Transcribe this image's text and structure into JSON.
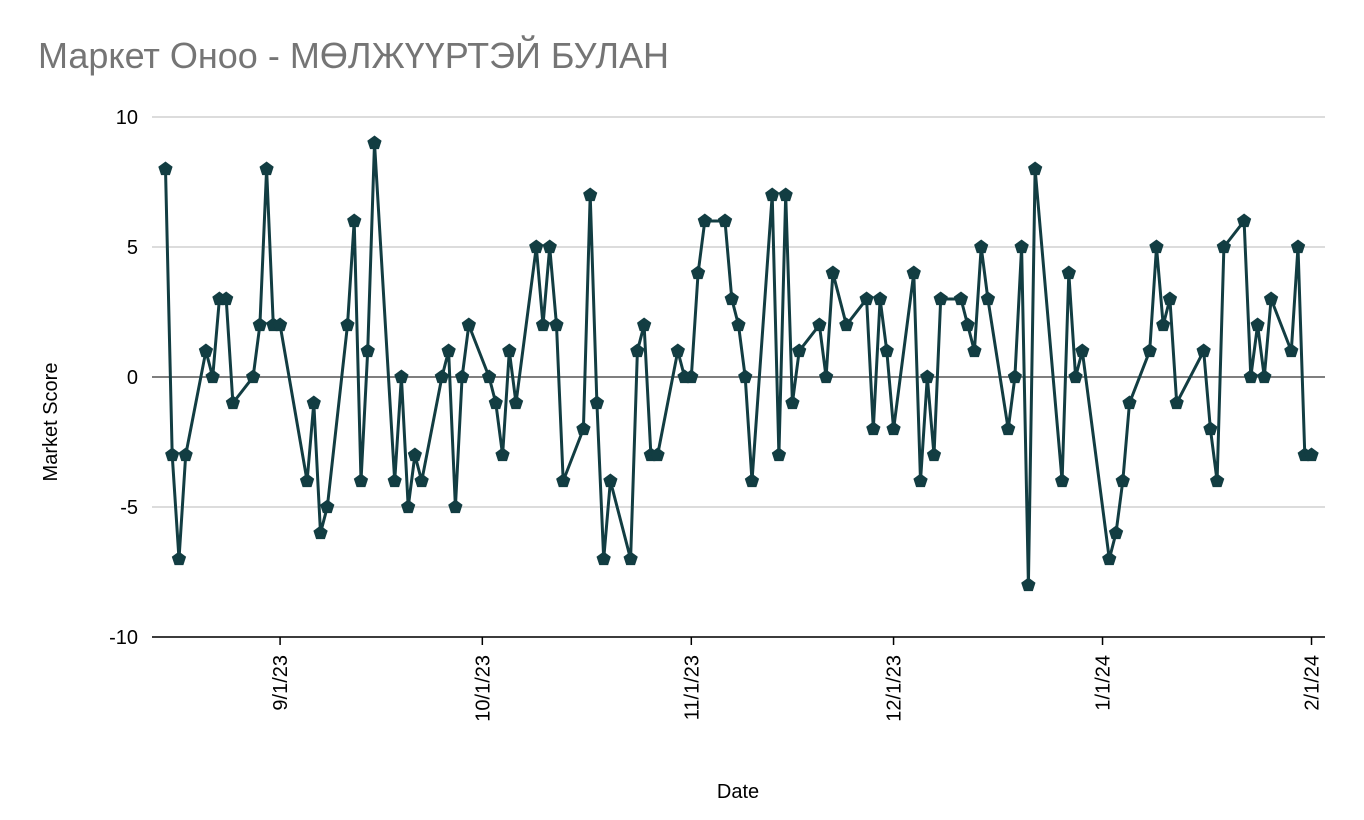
{
  "chart_data": {
    "type": "line",
    "title": "Маркет Оноо - МӨЛЖҮҮРТЭЙ БУЛАН",
    "x_label": "Date",
    "y_label": "Market Score",
    "color": "#123d42",
    "grid": true,
    "x": [
      "8/15/23",
      "8/16/23",
      "8/17/23",
      "8/18/23",
      "8/21/23",
      "8/22/23",
      "8/23/23",
      "8/24/23",
      "8/25/23",
      "8/28/23",
      "8/29/23",
      "8/30/23",
      "8/31/23",
      "9/1/23",
      "9/5/23",
      "9/6/23",
      "9/7/23",
      "9/8/23",
      "9/11/23",
      "9/12/23",
      "9/13/23",
      "9/14/23",
      "9/15/23",
      "9/18/23",
      "9/19/23",
      "9/20/23",
      "9/21/23",
      "9/22/23",
      "9/25/23",
      "9/26/23",
      "9/27/23",
      "9/28/23",
      "9/29/23",
      "10/2/23",
      "10/3/23",
      "10/4/23",
      "10/5/23",
      "10/6/23",
      "10/9/23",
      "10/10/23",
      "10/11/23",
      "10/12/23",
      "10/13/23",
      "10/16/23",
      "10/17/23",
      "10/18/23",
      "10/19/23",
      "10/20/23",
      "10/23/23",
      "10/24/23",
      "10/25/23",
      "10/26/23",
      "10/27/23",
      "10/30/23",
      "10/31/23",
      "11/1/23",
      "11/2/23",
      "11/3/23",
      "11/6/23",
      "11/7/23",
      "11/8/23",
      "11/9/23",
      "11/10/23",
      "11/13/23",
      "11/14/23",
      "11/15/23",
      "11/16/23",
      "11/17/23",
      "11/20/23",
      "11/21/23",
      "11/22/23",
      "11/24/23",
      "11/27/23",
      "11/28/23",
      "11/29/23",
      "11/30/23",
      "12/1/23",
      "12/4/23",
      "12/5/23",
      "12/6/23",
      "12/7/23",
      "12/8/23",
      "12/11/23",
      "12/12/23",
      "12/13/23",
      "12/14/23",
      "12/15/23",
      "12/18/23",
      "12/19/23",
      "12/20/23",
      "12/21/23",
      "12/22/23",
      "12/26/23",
      "12/27/23",
      "12/28/23",
      "12/29/23",
      "1/2/24",
      "1/3/24",
      "1/4/24",
      "1/5/24",
      "1/8/24",
      "1/9/24",
      "1/10/24",
      "1/11/24",
      "1/12/24",
      "1/16/24",
      "1/17/24",
      "1/18/24",
      "1/19/24",
      "1/22/24",
      "1/23/24",
      "1/24/24",
      "1/25/24",
      "1/26/24",
      "1/29/24",
      "1/30/24",
      "1/31/24",
      "2/1/24"
    ],
    "values": [
      8,
      -3,
      -7,
      -3,
      1,
      0,
      3,
      3,
      -1,
      0,
      2,
      8,
      2,
      2,
      -4,
      -1,
      -6,
      -5,
      2,
      6,
      -4,
      1,
      9,
      -4,
      0,
      -5,
      -3,
      -4,
      0,
      1,
      -5,
      0,
      2,
      0,
      -1,
      -3,
      1,
      -1,
      5,
      2,
      5,
      2,
      -4,
      -2,
      7,
      -1,
      -7,
      -4,
      -7,
      1,
      2,
      -3,
      -3,
      1,
      0,
      0,
      4,
      6,
      6,
      3,
      2,
      0,
      -4,
      7,
      -3,
      7,
      -1,
      1,
      2,
      0,
      4,
      2,
      3,
      -2,
      3,
      1,
      -2,
      4,
      -4,
      0,
      -3,
      3,
      3,
      2,
      1,
      5,
      3,
      -2,
      0,
      5,
      -8,
      8,
      -4,
      4,
      0,
      1,
      -7,
      -6,
      -4,
      -1,
      1,
      5,
      2,
      3,
      -1,
      1,
      -2,
      -4,
      5,
      6,
      0,
      2,
      0,
      3,
      1,
      5,
      -3,
      -3
    ],
    "xlim": [
      "8/13/23",
      "2/3/24"
    ],
    "xticks": [
      "9/1/23",
      "10/1/23",
      "11/1/23",
      "12/1/23",
      "1/1/24",
      "2/1/24"
    ],
    "ylim": [
      -10,
      10
    ],
    "yticks": [
      -10,
      -5,
      0,
      5,
      10
    ]
  }
}
